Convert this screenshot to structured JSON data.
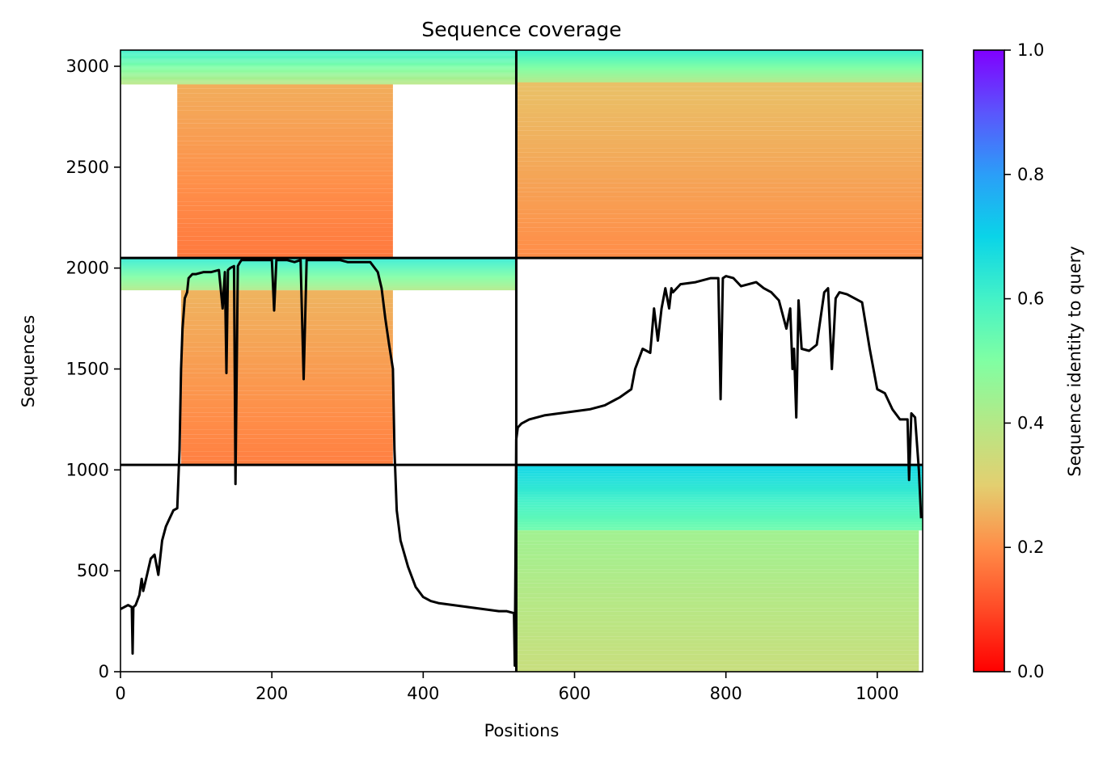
{
  "chart_data": {
    "type": "heatmap",
    "title": "Sequence coverage",
    "xlabel": "Positions",
    "ylabel": "Sequences",
    "xlim": [
      0,
      1060
    ],
    "ylim": [
      0,
      3080
    ],
    "xticks": [
      0,
      200,
      400,
      600,
      800,
      1000
    ],
    "yticks": [
      0,
      500,
      1000,
      1500,
      2000,
      2500,
      3000
    ],
    "colorbar": {
      "label": "Sequence identity to query",
      "range": [
        0,
        1
      ],
      "ticks": [
        "0.0",
        "0.2",
        "0.4",
        "0.6",
        "0.8",
        "1.0"
      ],
      "colormap": "rainbow_r"
    },
    "blocks": [
      {
        "x": [
          0,
          523
        ],
        "y": [
          2050,
          3080
        ],
        "top_identity": 0.62,
        "body_identity": 0.17,
        "band": [
          0,
          2910
        ],
        "coverage_x": [
          75,
          360
        ]
      },
      {
        "x": [
          523,
          1060
        ],
        "y": [
          2050,
          3080
        ],
        "top_identity": 0.62,
        "body_identity": 0.2,
        "band": [
          0,
          2920
        ],
        "coverage_x": [
          523,
          1060
        ]
      },
      {
        "x": [
          0,
          523
        ],
        "y": [
          1025,
          2050
        ],
        "top_identity": 0.64,
        "body_identity": 0.18,
        "band": [
          0,
          1890
        ],
        "coverage_x": [
          80,
          360
        ]
      },
      {
        "x": [
          523,
          1060
        ],
        "y": [
          0,
          1025
        ],
        "top_identity": 0.7,
        "body_identity": 0.36,
        "band": [
          0,
          700
        ],
        "coverage_x": [
          523,
          1055
        ]
      }
    ],
    "coverage_line": {
      "x": [
        0,
        10,
        15,
        16,
        17,
        20,
        25,
        28,
        30,
        35,
        40,
        45,
        50,
        55,
        60,
        65,
        70,
        75,
        78,
        80,
        82,
        85,
        88,
        90,
        95,
        100,
        110,
        120,
        130,
        135,
        138,
        140,
        142,
        145,
        150,
        152,
        155,
        158,
        160,
        170,
        180,
        190,
        200,
        203,
        206,
        210,
        220,
        230,
        238,
        242,
        246,
        250,
        260,
        270,
        280,
        290,
        300,
        310,
        320,
        330,
        340,
        345,
        350,
        355,
        360,
        362,
        365,
        370,
        380,
        390,
        400,
        410,
        420,
        440,
        460,
        480,
        500,
        510,
        520,
        521,
        523,
        525,
        530,
        540,
        560,
        580,
        600,
        620,
        640,
        660,
        675,
        680,
        690,
        700,
        705,
        710,
        715,
        720,
        725,
        728,
        730,
        740,
        760,
        780,
        790,
        793,
        796,
        800,
        810,
        820,
        830,
        840,
        850,
        860,
        870,
        880,
        885,
        888,
        890,
        893,
        896,
        900,
        910,
        920,
        930,
        935,
        940,
        945,
        950,
        960,
        970,
        980,
        990,
        1000,
        1010,
        1020,
        1030,
        1040,
        1042,
        1045,
        1050,
        1055,
        1058,
        1060
      ],
      "y": [
        310,
        330,
        320,
        90,
        320,
        330,
        380,
        460,
        400,
        480,
        560,
        580,
        480,
        650,
        720,
        760,
        800,
        810,
        1100,
        1500,
        1700,
        1850,
        1880,
        1950,
        1970,
        1970,
        1980,
        1980,
        1990,
        1800,
        1980,
        1480,
        1990,
        2000,
        2010,
        930,
        2010,
        2030,
        2040,
        2040,
        2040,
        2040,
        2040,
        1790,
        2040,
        2040,
        2040,
        2030,
        2040,
        1450,
        2040,
        2040,
        2040,
        2040,
        2040,
        2040,
        2030,
        2030,
        2030,
        2030,
        1980,
        1900,
        1750,
        1620,
        1500,
        1100,
        800,
        650,
        520,
        420,
        370,
        350,
        340,
        330,
        320,
        310,
        300,
        300,
        290,
        30,
        1150,
        1210,
        1230,
        1250,
        1270,
        1280,
        1290,
        1300,
        1320,
        1360,
        1400,
        1500,
        1600,
        1580,
        1800,
        1640,
        1800,
        1900,
        1800,
        1900,
        1880,
        1920,
        1930,
        1950,
        1950,
        1350,
        1950,
        1960,
        1950,
        1910,
        1920,
        1930,
        1900,
        1880,
        1840,
        1700,
        1800,
        1500,
        1600,
        1260,
        1840,
        1600,
        1590,
        1620,
        1880,
        1900,
        1500,
        1850,
        1880,
        1870,
        1850,
        1830,
        1600,
        1400,
        1380,
        1300,
        1250,
        1250,
        950,
        1280,
        1260,
        1000,
        760
      ]
    }
  }
}
